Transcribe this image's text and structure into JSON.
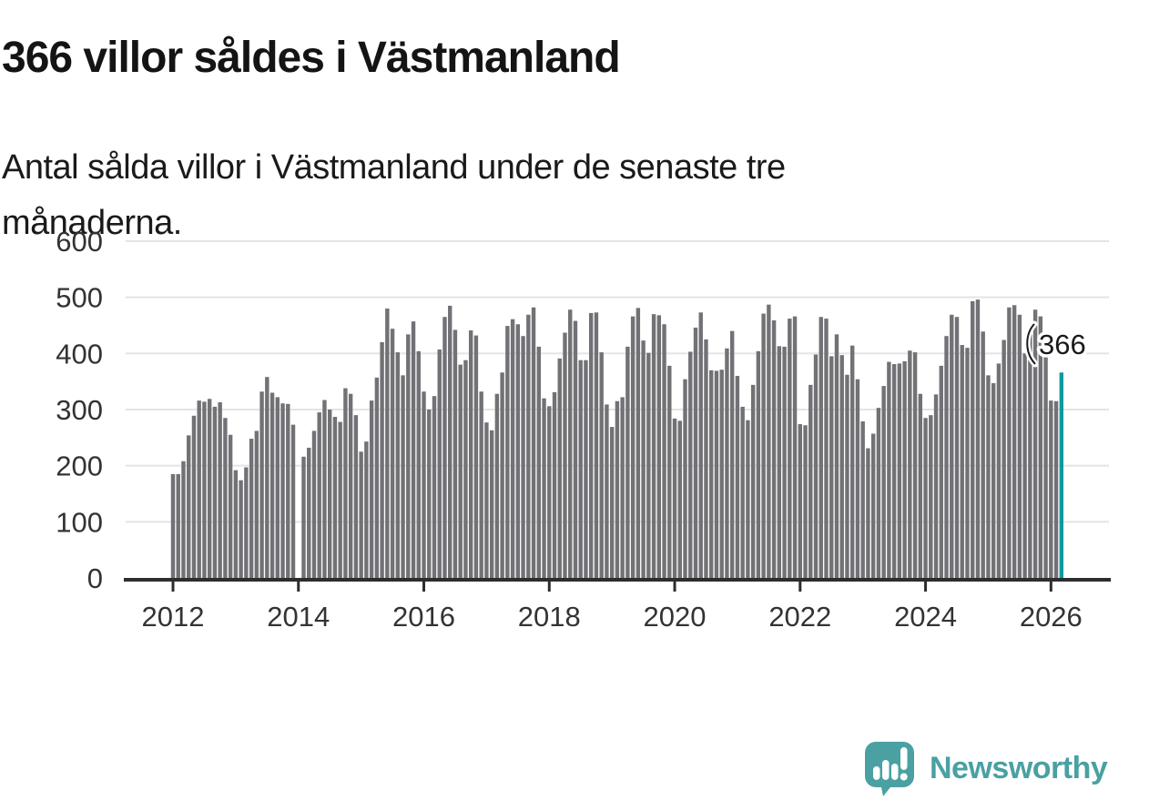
{
  "header": {
    "title": "366 villor såldes i Västmanland",
    "subtitle": "Antal sålda villor i Västmanland under de senaste tre månaderna."
  },
  "chart_data": {
    "type": "bar",
    "title": "366 villor såldes i Västmanland",
    "subtitle": "Antal sålda villor i Västmanland under de senaste tre månaderna.",
    "ylabel": "",
    "xlabel": "",
    "unit": "sålda villor (rullande 3 månader)",
    "start_month": "2012-01",
    "end_month": "2026-03",
    "note_missing": "2014-01 has no bar (gap in series)",
    "xticks": [
      2012,
      2014,
      2016,
      2018,
      2020,
      2022,
      2024,
      2026
    ],
    "yticks": [
      0,
      100,
      200,
      300,
      400,
      500,
      600
    ],
    "ylim": [
      0,
      600
    ],
    "grid": true,
    "values": [
      185,
      185,
      208,
      254,
      289,
      316,
      314,
      319,
      305,
      313,
      285,
      255,
      192,
      174,
      197,
      248,
      262,
      332,
      358,
      330,
      322,
      311,
      310,
      273,
      null,
      216,
      232,
      262,
      295,
      317,
      300,
      287,
      278,
      338,
      328,
      290,
      225,
      243,
      316,
      357,
      420,
      480,
      444,
      402,
      361,
      434,
      457,
      404,
      332,
      300,
      324,
      407,
      465,
      485,
      442,
      380,
      388,
      441,
      432,
      332,
      277,
      263,
      328,
      366,
      449,
      461,
      452,
      431,
      469,
      482,
      412,
      320,
      306,
      331,
      391,
      437,
      478,
      458,
      388,
      388,
      472,
      473,
      402,
      309,
      269,
      315,
      322,
      412,
      466,
      481,
      423,
      401,
      470,
      468,
      452,
      378,
      284,
      280,
      354,
      403,
      446,
      473,
      425,
      370,
      369,
      371,
      409,
      440,
      360,
      305,
      281,
      344,
      404,
      471,
      487,
      459,
      413,
      412,
      462,
      466,
      274,
      272,
      344,
      398,
      465,
      462,
      395,
      434,
      397,
      362,
      414,
      354,
      279,
      231,
      257,
      303,
      342,
      385,
      381,
      382,
      386,
      405,
      402,
      328,
      285,
      290,
      327,
      378,
      431,
      469,
      465,
      415,
      410,
      493,
      496,
      439,
      361,
      347,
      382,
      424,
      482,
      486,
      469,
      400,
      434,
      478,
      466,
      397,
      316,
      315,
      366
    ],
    "highlight_last": true,
    "annotation": {
      "label": "366",
      "value": 366
    },
    "legend": null,
    "colors": {
      "bar": "#717176",
      "highlight": "#0f9a9d",
      "axis": "#2d2d2d",
      "grid": "#e4e4e6",
      "annotation_text": "#1a1a1a",
      "tick_label": "#333333"
    }
  },
  "footer": {
    "brand": "Newsworthy",
    "brand_color": "#4aa0a2"
  }
}
